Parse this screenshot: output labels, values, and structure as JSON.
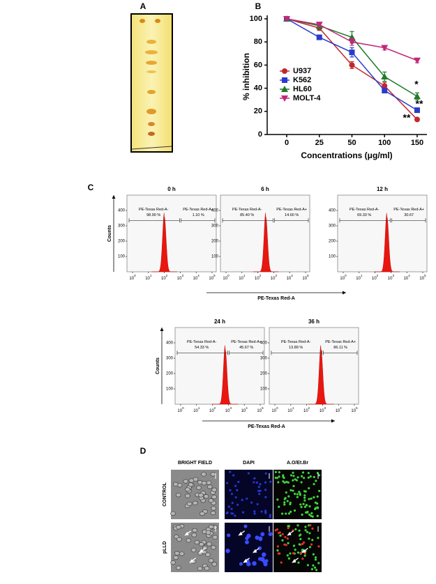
{
  "panel_labels": [
    "A",
    "B",
    "C",
    "D"
  ],
  "chart_data": [
    {
      "type": "line",
      "x_label": "Concentrations (μg/ml)",
      "y_label": "% inhibition",
      "categories": [
        "0",
        "25",
        "50",
        "100",
        "150"
      ],
      "ylim": [
        0,
        100
      ],
      "yticks": [
        0,
        20,
        40,
        60,
        80,
        100
      ],
      "legend": "upper-left",
      "series": [
        {
          "name": "U937",
          "color": "#c0282d",
          "marker": "circle",
          "values": [
            100,
            92,
            60,
            42,
            13
          ],
          "errors": [
            1,
            2,
            3,
            3,
            1
          ]
        },
        {
          "name": "K562",
          "color": "#2a3bcc",
          "marker": "square",
          "values": [
            100,
            84,
            71,
            38,
            21
          ],
          "errors": [
            1,
            2,
            4,
            2,
            2
          ]
        },
        {
          "name": "HL60",
          "color": "#1f7a2a",
          "marker": "triangle-up",
          "values": [
            100,
            94,
            84,
            50,
            33
          ],
          "errors": [
            1,
            3,
            5,
            4,
            3
          ]
        },
        {
          "name": "MOLT-4",
          "color": "#c2287a",
          "marker": "triangle-down",
          "values": [
            100,
            95,
            80,
            75,
            64
          ],
          "errors": [
            1,
            2,
            3,
            2,
            2
          ]
        }
      ],
      "annotations": [
        "*",
        "**",
        "**"
      ]
    }
  ],
  "flow": {
    "x_label": "PE-Texas Red-A",
    "y_label": "Counts",
    "yticks": [
      "100",
      "200",
      "300",
      "400"
    ],
    "tick_base": "10",
    "xtick_exponents": [
      "0",
      "1",
      "2",
      "3",
      "4",
      "5"
    ],
    "plots": [
      {
        "title": "0 h",
        "gate_neg": "PE-Texas Red-A-",
        "pct_neg": "98.90 %",
        "gate_pos": "PE-Texas Red-A+",
        "pct_pos": "1.10 %"
      },
      {
        "title": "6 h",
        "gate_neg": "PE-Texas Red-A-",
        "pct_neg": "85.40 %",
        "gate_pos": "PE-Texas Red-A+",
        "pct_pos": "14.60 %"
      },
      {
        "title": "12 h",
        "gate_neg": "PE-Texas Red-A-",
        "pct_neg": "69.33 %",
        "gate_pos": "PE-Texas Red-A+",
        "pct_pos": "30.67"
      },
      {
        "title": "24 h",
        "gate_neg": "PE-Texas Red-A-",
        "pct_neg": "54.33 %",
        "gate_pos": "PE-Texas Red-A+",
        "pct_pos": "45.67 %"
      },
      {
        "title": "36 h",
        "gate_neg": "PE-Texas Red-A-",
        "pct_neg": "13.89 %",
        "gate_pos": "PE-Texas Red-A+",
        "pct_pos": "86.11 %"
      }
    ]
  },
  "microscopy": {
    "columns": [
      "BRIGHT FIELD",
      "DAPI",
      "A.O/Et.Br"
    ],
    "rows": [
      "CONTROL",
      "pLLD"
    ]
  }
}
